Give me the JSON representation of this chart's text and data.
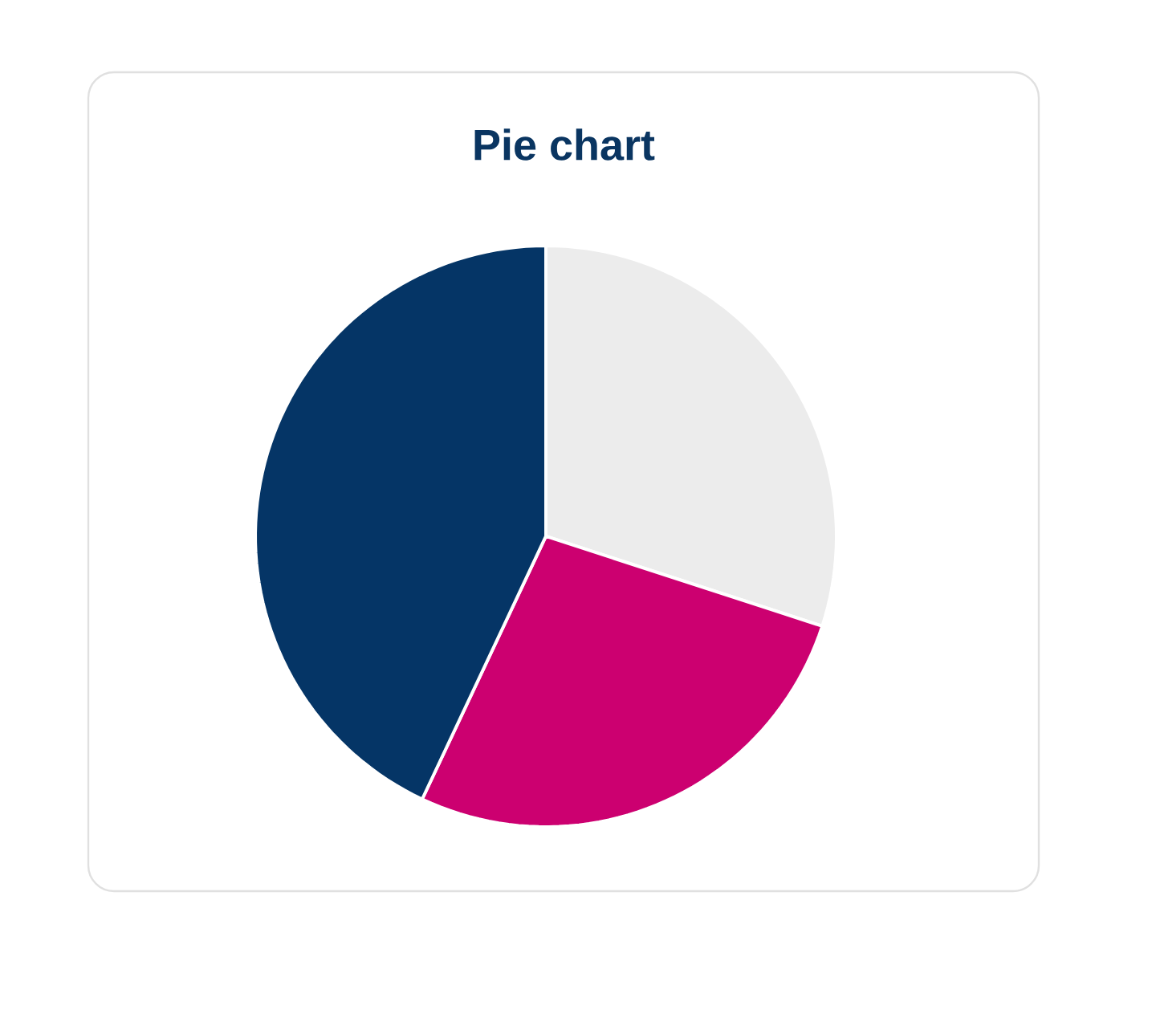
{
  "chart_data": {
    "type": "pie",
    "title": "Pie chart",
    "categories": [
      null,
      null,
      null
    ],
    "values": [
      30,
      27,
      43
    ],
    "colors": [
      "#ececec",
      "#cc0070",
      "#053566"
    ]
  }
}
